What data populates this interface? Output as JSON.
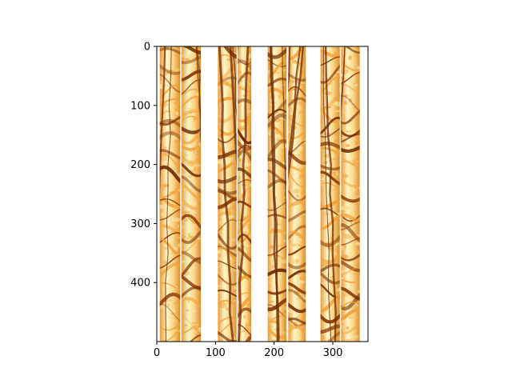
{
  "chart_data": {
    "type": "heatmap",
    "subtype": "image-log-strips",
    "title": "",
    "xlabel": "",
    "ylabel": "",
    "xlim": [
      0,
      360
    ],
    "ylim": [
      500,
      0
    ],
    "y_inverted": true,
    "x_ticks": [
      "0",
      "100",
      "200",
      "300"
    ],
    "y_ticks": [
      "0",
      "100",
      "200",
      "300",
      "400"
    ],
    "grid": false,
    "legend": "none",
    "colormap": "YlOrBr-like (white → amber → dark brown)",
    "colors": {
      "background": "#ffffff",
      "light": "#fff6c8",
      "mid": "#f2a23a",
      "dark": "#8a3a06",
      "darkest": "#6e2a02"
    },
    "strips": [
      {
        "x_range": [
          5,
          40
        ],
        "lean": -6
      },
      {
        "x_range": [
          42,
          75
        ],
        "lean": 12
      },
      {
        "x_range": [
          104,
          136
        ],
        "lean": 10
      },
      {
        "x_range": [
          138,
          161
        ],
        "lean": -4
      },
      {
        "x_range": [
          189,
          221
        ],
        "lean": 4
      },
      {
        "x_range": [
          224,
          254
        ],
        "lean": -22
      },
      {
        "x_range": [
          279,
          312
        ],
        "lean": 6
      },
      {
        "x_range": [
          314,
          346
        ],
        "lean": -12
      }
    ]
  }
}
